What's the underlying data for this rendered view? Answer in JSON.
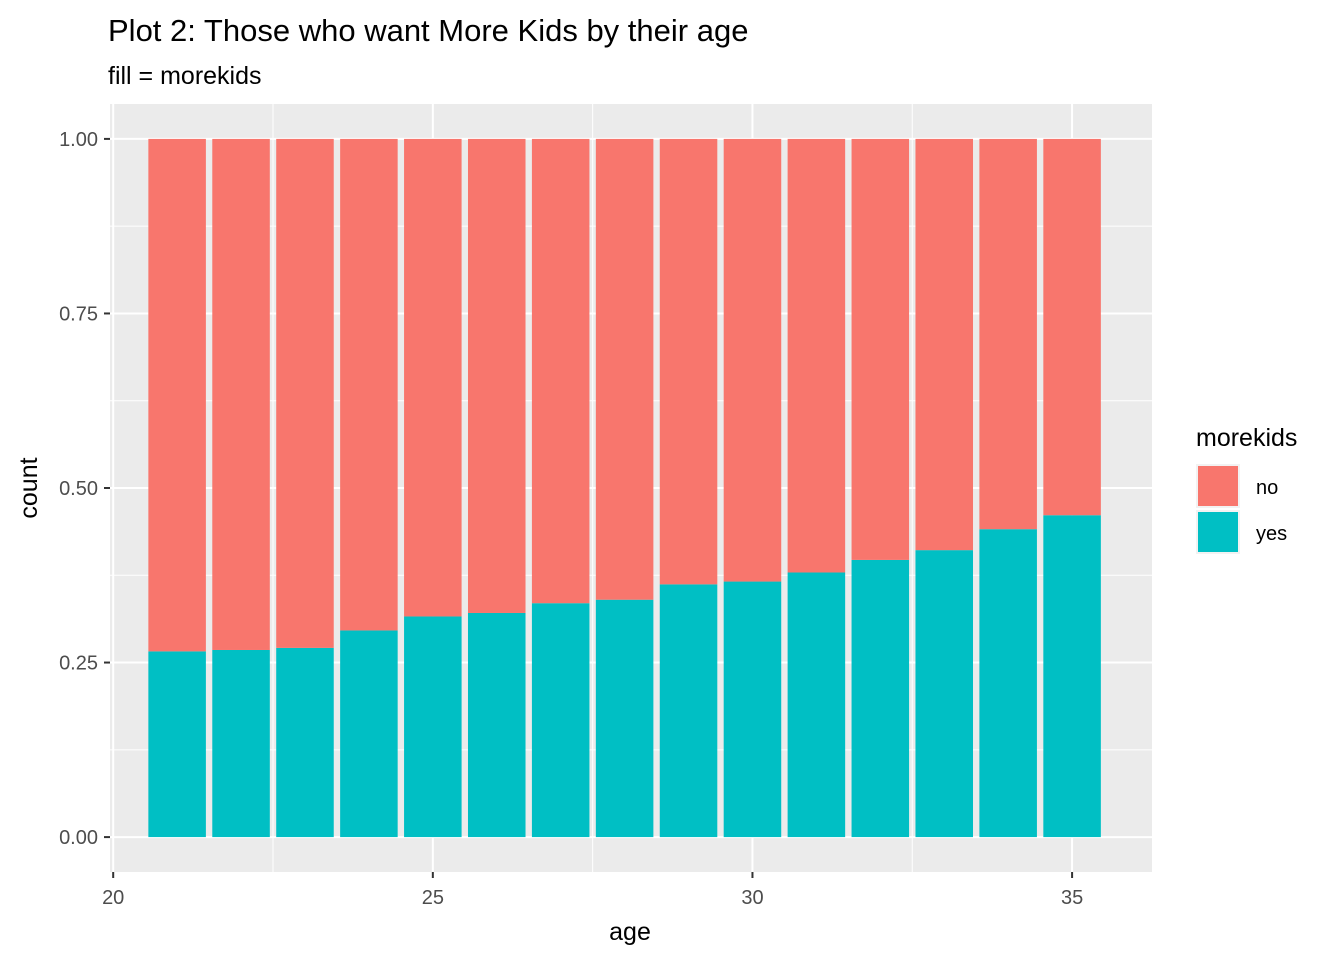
{
  "chart_data": {
    "type": "bar",
    "stacked": true,
    "position": "fill",
    "title": "Plot 2: Those who want More Kids by their age",
    "subtitle": "fill = morekids",
    "xlabel": "age",
    "ylabel": "count",
    "x": [
      21,
      22,
      23,
      24,
      25,
      26,
      27,
      28,
      29,
      30,
      31,
      32,
      33,
      34,
      35
    ],
    "series": [
      {
        "name": "yes",
        "color": "#00BFC4",
        "values": [
          0.266,
          0.268,
          0.271,
          0.296,
          0.316,
          0.321,
          0.335,
          0.34,
          0.362,
          0.366,
          0.379,
          0.397,
          0.411,
          0.441,
          0.461
        ]
      },
      {
        "name": "no",
        "color": "#F8766D",
        "values": [
          0.734,
          0.732,
          0.729,
          0.704,
          0.684,
          0.679,
          0.665,
          0.66,
          0.638,
          0.634,
          0.621,
          0.603,
          0.589,
          0.559,
          0.539
        ]
      }
    ],
    "xlim": [
      19.95,
      36.25
    ],
    "ylim": [
      -0.05,
      1.05
    ],
    "x_ticks": [
      20,
      25,
      30,
      35
    ],
    "x_tick_labels": [
      "20",
      "25",
      "30",
      "35"
    ],
    "y_ticks": [
      0,
      0.25,
      0.5,
      0.75,
      1
    ],
    "y_tick_labels": [
      "0.00",
      "0.25",
      "0.50",
      "0.75",
      "1.00"
    ],
    "grid": true,
    "panel_background": "#EBEBEB",
    "legend": {
      "title": "morekids",
      "placement": "right",
      "entries": [
        {
          "label": "no",
          "color": "#F8766D"
        },
        {
          "label": "yes",
          "color": "#00BFC4"
        }
      ]
    }
  }
}
